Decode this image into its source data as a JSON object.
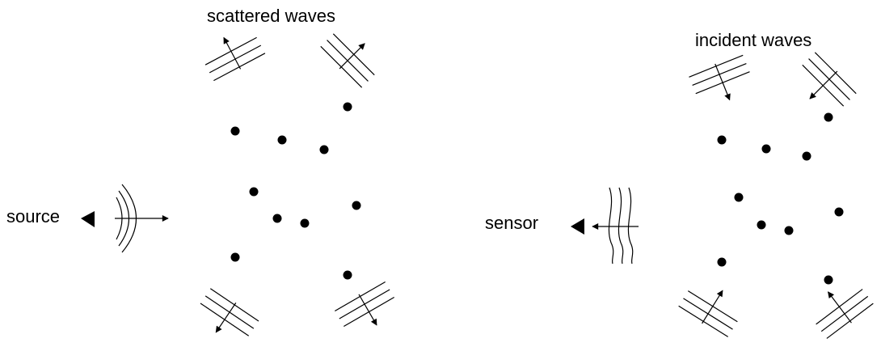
{
  "panels": [
    {
      "id": "left",
      "labels": {
        "title": "scattered waves",
        "emitter": "source"
      },
      "wave_direction": "outgoing"
    },
    {
      "id": "right",
      "labels": {
        "title": "incident waves",
        "receiver": "sensor"
      },
      "wave_direction": "incoming"
    }
  ],
  "colors": {
    "ink": "#000000",
    "background": "#ffffff"
  }
}
